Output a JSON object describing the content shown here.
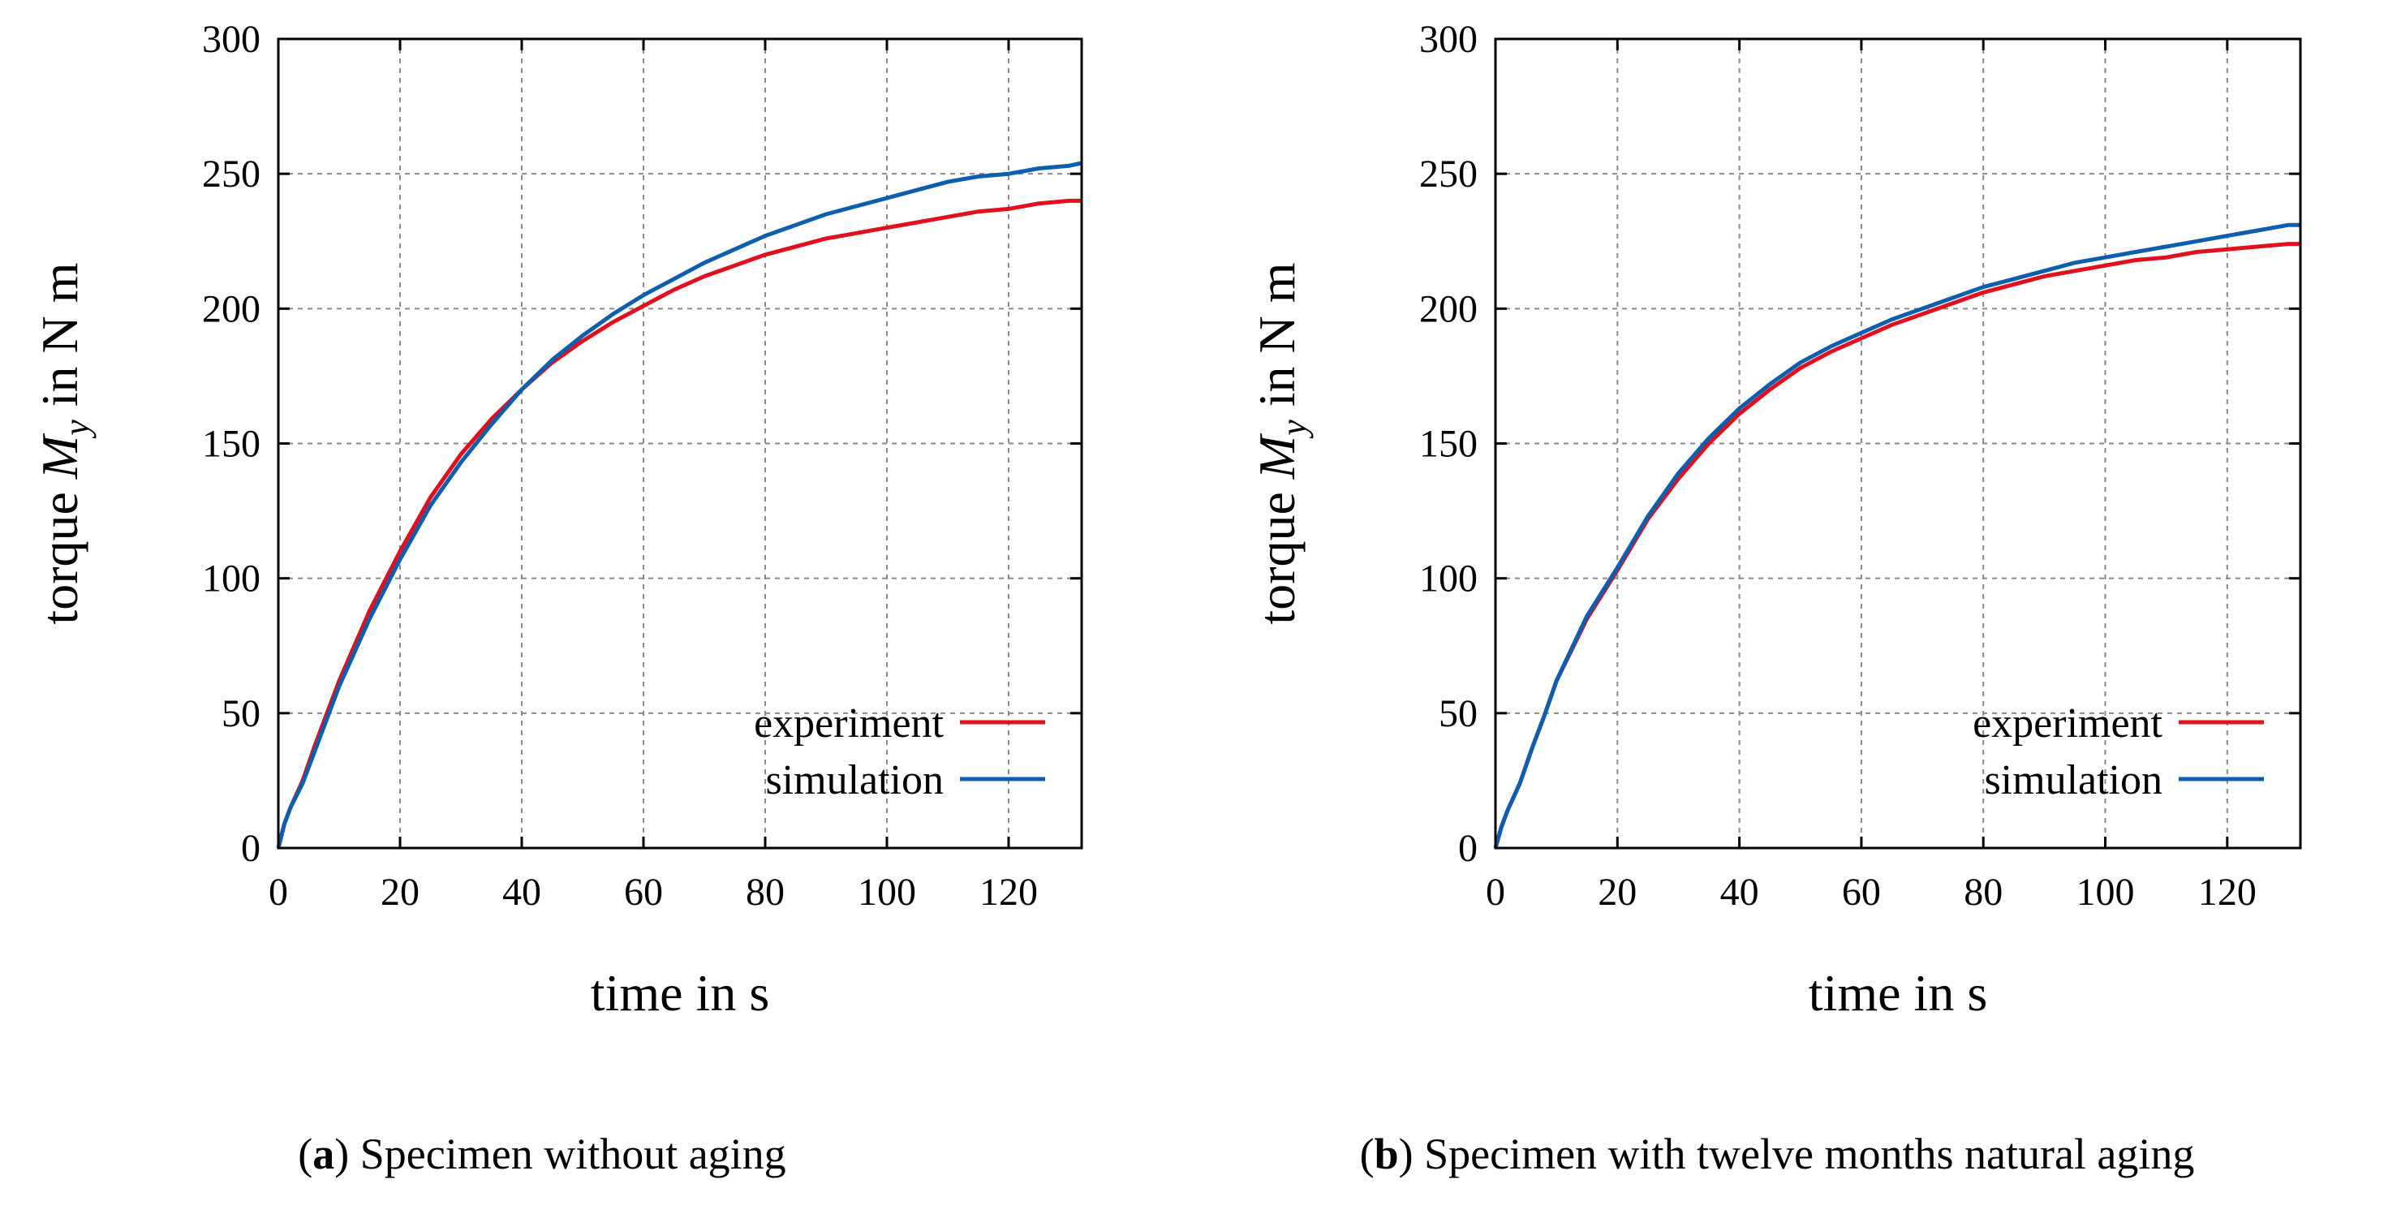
{
  "chart_data": [
    {
      "type": "line",
      "caption_letter": "a",
      "caption_text": "Specimen without aging",
      "xlabel": "time in s",
      "ylabel_prefix": "torque ",
      "ylabel_symbol": "M",
      "ylabel_subscript": "y",
      "ylabel_suffix": " in N m",
      "xlim": [
        0,
        132
      ],
      "ylim": [
        0,
        300
      ],
      "xticks": [
        0,
        20,
        40,
        60,
        80,
        100,
        120
      ],
      "yticks": [
        0,
        50,
        100,
        150,
        200,
        250,
        300
      ],
      "grid": true,
      "legend_position": "bottom-right",
      "series": [
        {
          "name": "experiment",
          "color": "#e0101e",
          "x": [
            0,
            1,
            2,
            4,
            6,
            8,
            10,
            15,
            20,
            25,
            30,
            35,
            40,
            45,
            50,
            55,
            60,
            65,
            70,
            75,
            80,
            85,
            90,
            95,
            100,
            105,
            110,
            115,
            120,
            125,
            130,
            132
          ],
          "y": [
            0,
            9,
            15,
            25,
            38,
            50,
            62,
            88,
            110,
            130,
            146,
            159,
            170,
            180,
            188,
            195,
            201,
            207,
            212,
            216,
            220,
            223,
            226,
            228,
            230,
            232,
            234,
            236,
            237,
            239,
            240,
            240
          ]
        },
        {
          "name": "simulation",
          "color": "#0b5fae",
          "x": [
            0,
            1,
            2,
            4,
            6,
            8,
            10,
            15,
            20,
            25,
            30,
            35,
            40,
            45,
            50,
            55,
            60,
            65,
            70,
            75,
            80,
            85,
            90,
            95,
            100,
            105,
            110,
            115,
            120,
            125,
            130,
            132
          ],
          "y": [
            0,
            9,
            15,
            24,
            36,
            48,
            60,
            85,
            107,
            127,
            143,
            157,
            170,
            181,
            190,
            198,
            205,
            211,
            217,
            222,
            227,
            231,
            235,
            238,
            241,
            244,
            247,
            249,
            250,
            252,
            253,
            254
          ]
        }
      ]
    },
    {
      "type": "line",
      "caption_letter": "b",
      "caption_text": "Specimen with twelve months natural aging",
      "xlabel": "time in s",
      "ylabel_prefix": "torque ",
      "ylabel_symbol": "M",
      "ylabel_subscript": "y",
      "ylabel_suffix": " in N m",
      "xlim": [
        0,
        132
      ],
      "ylim": [
        0,
        300
      ],
      "xticks": [
        0,
        20,
        40,
        60,
        80,
        100,
        120
      ],
      "yticks": [
        0,
        50,
        100,
        150,
        200,
        250,
        300
      ],
      "grid": true,
      "legend_position": "bottom-right",
      "series": [
        {
          "name": "experiment",
          "color": "#e0101e",
          "x": [
            0,
            1,
            2,
            4,
            6,
            8,
            10,
            15,
            20,
            25,
            30,
            35,
            40,
            45,
            50,
            55,
            60,
            65,
            70,
            75,
            80,
            85,
            90,
            95,
            100,
            105,
            110,
            115,
            120,
            125,
            130,
            132
          ],
          "y": [
            0,
            8,
            14,
            24,
            37,
            49,
            62,
            85,
            103,
            122,
            137,
            150,
            161,
            170,
            178,
            184,
            189,
            194,
            198,
            202,
            206,
            209,
            212,
            214,
            216,
            218,
            219,
            221,
            222,
            223,
            224,
            224
          ]
        },
        {
          "name": "simulation",
          "color": "#0b5fae",
          "x": [
            0,
            1,
            2,
            4,
            6,
            8,
            10,
            15,
            20,
            25,
            30,
            35,
            40,
            45,
            50,
            55,
            60,
            65,
            70,
            75,
            80,
            85,
            90,
            95,
            100,
            105,
            110,
            115,
            120,
            125,
            130,
            132
          ],
          "y": [
            0,
            8,
            14,
            24,
            37,
            49,
            62,
            86,
            104,
            123,
            139,
            152,
            163,
            172,
            180,
            186,
            191,
            196,
            200,
            204,
            208,
            211,
            214,
            217,
            219,
            221,
            223,
            225,
            227,
            229,
            231,
            231
          ]
        }
      ]
    }
  ]
}
